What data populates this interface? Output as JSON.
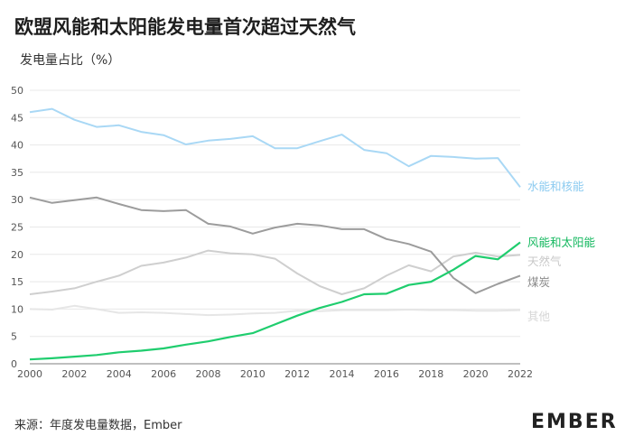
{
  "title": "欧盟风能和太阳能发电量首次超过天然气",
  "source": "来源：年度发电量数据，Ember",
  "logo_text": "EMBER",
  "chart_data": {
    "type": "line",
    "title": "欧盟风能和太阳能发电量首次超过天然气",
    "ylabel": "发电量占比（%）",
    "xlabel": "",
    "xlim": [
      2000,
      2022
    ],
    "ylim": [
      0,
      50
    ],
    "grid": true,
    "x": [
      2000,
      2001,
      2002,
      2003,
      2004,
      2005,
      2006,
      2007,
      2008,
      2009,
      2010,
      2011,
      2012,
      2013,
      2014,
      2015,
      2016,
      2017,
      2018,
      2019,
      2020,
      2021,
      2022
    ],
    "x_ticks": [
      2000,
      2002,
      2004,
      2006,
      2008,
      2010,
      2012,
      2014,
      2016,
      2018,
      2020,
      2022
    ],
    "y_ticks": [
      0,
      5,
      10,
      15,
      20,
      25,
      30,
      35,
      40,
      45,
      50
    ],
    "series": [
      {
        "name": "水能和核能",
        "color": "#a9d8f5",
        "values": [
          46,
          46.6,
          44.6,
          43.3,
          43.6,
          42.4,
          41.8,
          40.1,
          40.8,
          41.1,
          41.6,
          39.4,
          39.4,
          40.7,
          41.9,
          39.1,
          38.5,
          36.1,
          38,
          37.8,
          37.5,
          37.6,
          32.3
        ]
      },
      {
        "name": "风能和太阳能",
        "color": "#1fcd6e",
        "values": [
          0.8,
          1,
          1.3,
          1.6,
          2.1,
          2.4,
          2.8,
          3.5,
          4.1,
          4.9,
          5.6,
          7.2,
          8.8,
          10.2,
          11.3,
          12.7,
          12.8,
          14.4,
          15,
          17.2,
          19.7,
          19.1,
          22.2
        ]
      },
      {
        "name": "天然气",
        "color": "#cfcfcf",
        "values": [
          12.7,
          13.2,
          13.8,
          15,
          16.1,
          17.9,
          18.5,
          19.4,
          20.7,
          20.2,
          20,
          19.2,
          16.5,
          14.2,
          12.7,
          13.8,
          16.1,
          18,
          16.9,
          19.6,
          20.3,
          19.6,
          19.9
        ]
      },
      {
        "name": "煤炭",
        "color": "#9c9c9c",
        "values": [
          30.4,
          29.4,
          29.9,
          30.4,
          29.2,
          28.1,
          27.9,
          28.1,
          25.6,
          25.1,
          23.8,
          24.9,
          25.6,
          25.3,
          24.6,
          24.6,
          22.8,
          21.9,
          20.5,
          15.7,
          12.9,
          14.6,
          16.1
        ]
      },
      {
        "name": "其他",
        "color": "#e6e6e6",
        "values": [
          10,
          9.9,
          10.6,
          10,
          9.3,
          9.4,
          9.3,
          9.1,
          8.9,
          9,
          9.2,
          9.3,
          9.7,
          9.6,
          9.8,
          9.8,
          9.8,
          9.9,
          9.8,
          9.8,
          9.7,
          9.7,
          9.8
        ]
      }
    ]
  }
}
